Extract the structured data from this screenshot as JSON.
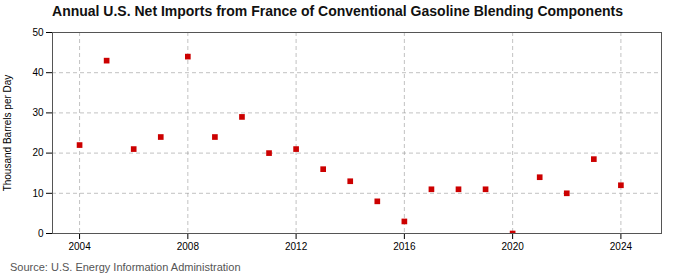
{
  "chart_data": {
    "type": "scatter",
    "title": "Annual U.S. Net Imports from France of Conventional Gasoline Blending Components",
    "ylabel": "Thousand Barrels per Day",
    "annotation": "Source: U.S. Energy Information Administration",
    "x": [
      2004,
      2005,
      2006,
      2007,
      2008,
      2009,
      2010,
      2011,
      2012,
      2013,
      2014,
      2015,
      2016,
      2017,
      2018,
      2019,
      2020,
      2021,
      2022,
      2023,
      2024
    ],
    "values": [
      22.0,
      43.0,
      21.0,
      24.0,
      44.0,
      24.0,
      29.0,
      20.0,
      21.0,
      16.0,
      13.0,
      8.0,
      3.0,
      11.0,
      11.0,
      11.0,
      0.0,
      14.0,
      10.0,
      18.5,
      12.0
    ],
    "color": "#cc0000",
    "marker": "square",
    "xlim": [
      2003.0,
      2025.5
    ],
    "xticks": [
      2004,
      2008,
      2012,
      2016,
      2020,
      2024
    ],
    "ylim": [
      0,
      50
    ],
    "yticks": [
      0,
      10,
      20,
      30,
      40,
      50
    ],
    "grid": true
  }
}
